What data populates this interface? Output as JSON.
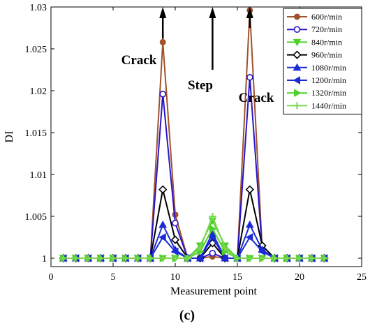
{
  "panel_label": "(c)",
  "chart_data": {
    "type": "line",
    "xlabel": "Measurement point",
    "ylabel": "DI",
    "xlim": [
      0,
      25
    ],
    "ylim": [
      0.999,
      1.03
    ],
    "xticks": [
      0,
      5,
      10,
      15,
      20,
      25
    ],
    "yticks": [
      1,
      1.005,
      1.01,
      1.015,
      1.02,
      1.025,
      1.03
    ],
    "ytick_labels": [
      "1",
      "1.005",
      "1.01",
      "1.015",
      "1.02",
      "1.025",
      "1.03"
    ],
    "legend_position": "top-right",
    "grid": false,
    "annotations": [
      {
        "text": "Crack",
        "x": 9,
        "y": 1.0255,
        "arrow": {
          "x": 9,
          "y_from": 1.0262,
          "y_to": 1.03
        }
      },
      {
        "text": "Step",
        "x": 13,
        "y": 1.0215,
        "arrow": {
          "x": 13,
          "y_from": 1.0225,
          "y_to": 1.03
        }
      },
      {
        "text": "Crack",
        "x": 16,
        "y": 1.0205,
        "arrow": {
          "x": 16,
          "y_from": 1.0275,
          "y_to": 1.03
        }
      }
    ],
    "x": [
      1,
      2,
      3,
      4,
      5,
      6,
      7,
      8,
      9,
      10,
      11,
      12,
      13,
      14,
      15,
      16,
      17,
      18,
      19,
      20,
      21,
      22
    ],
    "series": [
      {
        "name": "600r/min",
        "color": "#a0522d",
        "marker": "circle-filled",
        "values": [
          1,
          1,
          1,
          1,
          1,
          1,
          1,
          1,
          1.0258,
          1.0052,
          1,
          1,
          1.0002,
          1,
          1,
          1.0296,
          1.001,
          1,
          1,
          1,
          1,
          1
        ]
      },
      {
        "name": "720r/min",
        "color": "#2a14c8",
        "marker": "circle-open",
        "values": [
          1,
          1,
          1,
          1,
          1,
          1,
          1,
          1,
          1.0196,
          1.0042,
          1,
          1,
          1.0006,
          1,
          1,
          1.0216,
          1.001,
          1,
          1,
          1,
          1,
          1
        ]
      },
      {
        "name": "840r/min",
        "color": "#4cd12a",
        "marker": "triangle-down",
        "values": [
          1,
          1,
          1,
          1,
          1,
          1,
          1,
          1,
          1,
          1,
          1,
          1.0015,
          1.0045,
          1.0015,
          1,
          1,
          1,
          1,
          1,
          1,
          1,
          1
        ]
      },
      {
        "name": "960r/min",
        "color": "#000000",
        "marker": "diamond-open",
        "values": [
          1,
          1,
          1,
          1,
          1,
          1,
          1,
          1,
          1.0082,
          1.0022,
          1,
          1,
          1.0018,
          1,
          1,
          1.0082,
          1.0015,
          1,
          1,
          1,
          1,
          1
        ]
      },
      {
        "name": "1080r/min",
        "color": "#1a2ad6",
        "marker": "triangle-up",
        "values": [
          1,
          1,
          1,
          1,
          1,
          1,
          1,
          1,
          1.004,
          1.001,
          1,
          1,
          1.003,
          1,
          1,
          1.004,
          1.001,
          1,
          1,
          1,
          1,
          1
        ]
      },
      {
        "name": "1200r/min",
        "color": "#1a2ad6",
        "marker": "triangle-left",
        "values": [
          1,
          1,
          1,
          1,
          1,
          1,
          1,
          1,
          1.0025,
          1.0008,
          1,
          1,
          1.0025,
          1,
          1,
          1.0025,
          1.0008,
          1,
          1,
          1,
          1,
          1
        ]
      },
      {
        "name": "1320r/min",
        "color": "#4cd12a",
        "marker": "triangle-right",
        "values": [
          1,
          1,
          1,
          1,
          1,
          1,
          1,
          1,
          1,
          1,
          1,
          1.0008,
          1.0035,
          1.0008,
          1,
          1,
          1,
          1,
          1,
          1,
          1,
          1
        ]
      },
      {
        "name": "1440r/min",
        "color": "#7ed650",
        "marker": "plus",
        "values": [
          1,
          1,
          1,
          1,
          1,
          1,
          1,
          1,
          1,
          1,
          1,
          1.0012,
          1.005,
          1.0012,
          1,
          1,
          1,
          1,
          1,
          1,
          1,
          1
        ]
      }
    ]
  }
}
